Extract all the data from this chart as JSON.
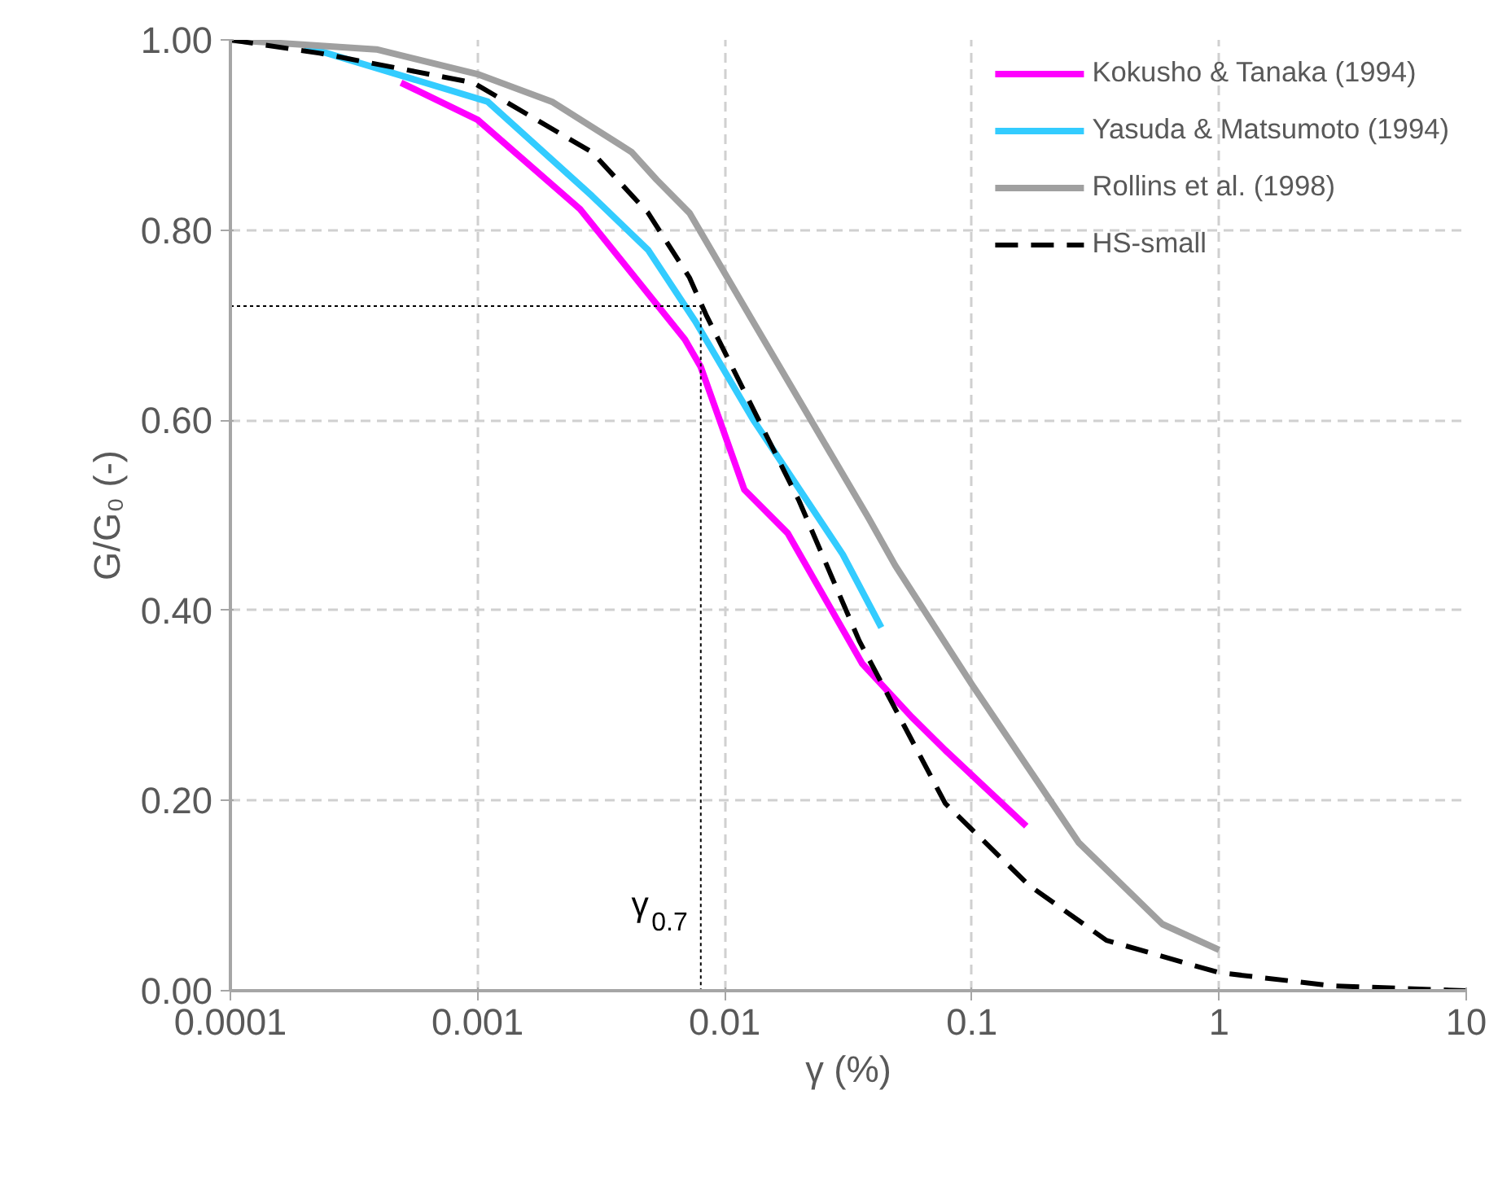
{
  "chart_data": {
    "type": "line",
    "xlabel": "γ (%)",
    "ylabel": "G/G₀ (-)",
    "log": "x",
    "grid": true,
    "legend": "top right",
    "xlim": [
      0.0001,
      10
    ],
    "ylim": [
      0,
      1
    ],
    "xticks": [
      0.0001,
      0.001,
      0.01,
      0.1,
      1,
      10
    ],
    "yticks": [
      {
        "value": 0,
        "label": "0.00"
      },
      {
        "value": 0.2,
        "label": "0.20"
      },
      {
        "value": 0.4,
        "label": "0.40"
      },
      {
        "value": 0.6,
        "label": "0.60"
      },
      {
        "value": 0.8,
        "label": "0.80"
      },
      {
        "value": 1,
        "label": "1.00"
      }
    ],
    "series": [
      {
        "name": "Kokusho & Tanaka (1994)",
        "color": "#ff00ff",
        "line_style": "solid",
        "x": [
          0.00049,
          0.001,
          0.0026,
          0.0069,
          0.008,
          0.012,
          0.018,
          0.036,
          0.057,
          0.078,
          0.166
        ],
        "values": [
          0.955,
          0.916,
          0.822,
          0.685,
          0.656,
          0.527,
          0.481,
          0.344,
          0.288,
          0.253,
          0.173
        ]
      },
      {
        "name": "Yasuda & Matsumoto (1994)",
        "color": "#33ccff",
        "line_style": "solid",
        "x": [
          0.0002,
          0.0011,
          0.0029,
          0.0049,
          0.0076,
          0.013,
          0.03,
          0.043
        ],
        "values": [
          0.993,
          0.935,
          0.836,
          0.779,
          0.704,
          0.601,
          0.459,
          0.382
        ]
      },
      {
        "name": "Rollins et al. (1998)",
        "color": "#a0a0a0",
        "line_style": "solid",
        "x": [
          0.0001,
          0.00039,
          0.001,
          0.002,
          0.0042,
          0.0053,
          0.0072,
          0.013,
          0.038,
          0.049,
          0.1,
          0.27,
          0.59,
          1.0
        ],
        "values": [
          1.0,
          0.99,
          0.964,
          0.935,
          0.882,
          0.853,
          0.818,
          0.704,
          0.498,
          0.447,
          0.322,
          0.156,
          0.07,
          0.043
        ]
      },
      {
        "name": "HS-small",
        "color": "#000000",
        "line_style": "dashed",
        "x": [
          0.0001,
          0.00023,
          0.00096,
          0.0029,
          0.0049,
          0.0072,
          0.0084,
          0.02,
          0.035,
          0.078,
          0.17,
          0.35,
          1.0,
          2.9,
          10
        ],
        "values": [
          1.0,
          0.986,
          0.955,
          0.882,
          0.818,
          0.75,
          0.711,
          0.515,
          0.368,
          0.197,
          0.111,
          0.053,
          0.019,
          0.005,
          0.0
        ]
      },
      {
        "color": "#000000",
        "line_style": "dotted",
        "x": [
          0.0001,
          0.008,
          0.008
        ],
        "values": [
          0.72,
          0.72,
          0
        ]
      }
    ],
    "annotations": [
      {
        "text": "γ$_{0.7}$",
        "x": 0.008,
        "y": 0.07
      }
    ]
  }
}
